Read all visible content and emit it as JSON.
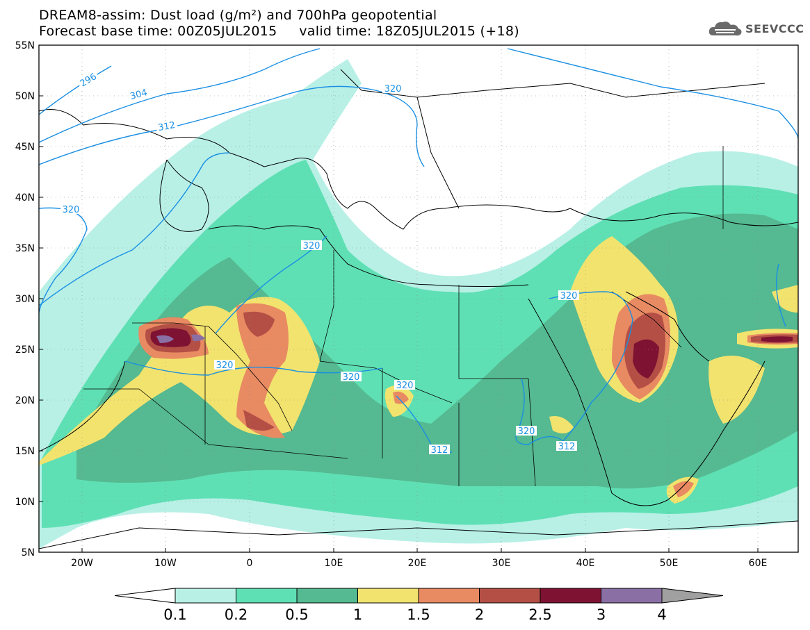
{
  "title": {
    "line1": "DREAM8-assim: Dust load (g/m²) and 700hPa geopotential",
    "line2": "Forecast base time: 00Z05JUL2015     valid time: 18Z05JUL2015 (+18)"
  },
  "logo": {
    "text": "SEEVCCC",
    "icon": "cloud-icon"
  },
  "map": {
    "lat_labels": [
      "55N",
      "50N",
      "45N",
      "40N",
      "35N",
      "30N",
      "25N",
      "20N",
      "15N",
      "10N",
      "5N"
    ],
    "lon_labels": [
      "20W",
      "10W",
      "0",
      "10E",
      "20E",
      "30E",
      "40E",
      "50E",
      "60E"
    ],
    "contour_labels": [
      "296",
      "304",
      "312",
      "320",
      "320",
      "320",
      "320",
      "320",
      "320",
      "320",
      "320",
      "312",
      "312"
    ],
    "colors": {
      "c1": "#b8f0e6",
      "c2": "#5fe0b4",
      "c3": "#55b991",
      "c4": "#f2e36e",
      "c5": "#e88a62",
      "c6": "#b44f45",
      "c7": "#7e1233",
      "c8": "#8a6fa5",
      "contour": "#1a8fe3"
    }
  },
  "colorbar": {
    "labels": [
      "0.1",
      "0.2",
      "0.5",
      "1",
      "1.5",
      "2",
      "2.5",
      "3",
      "4"
    ],
    "colors": [
      "#b8f0e6",
      "#5fe0b4",
      "#55b991",
      "#f2e36e",
      "#e88a62",
      "#b44f45",
      "#7e1233",
      "#8a6fa5"
    ],
    "under_color": "#ffffff",
    "over_color": "#a0a0a0"
  }
}
